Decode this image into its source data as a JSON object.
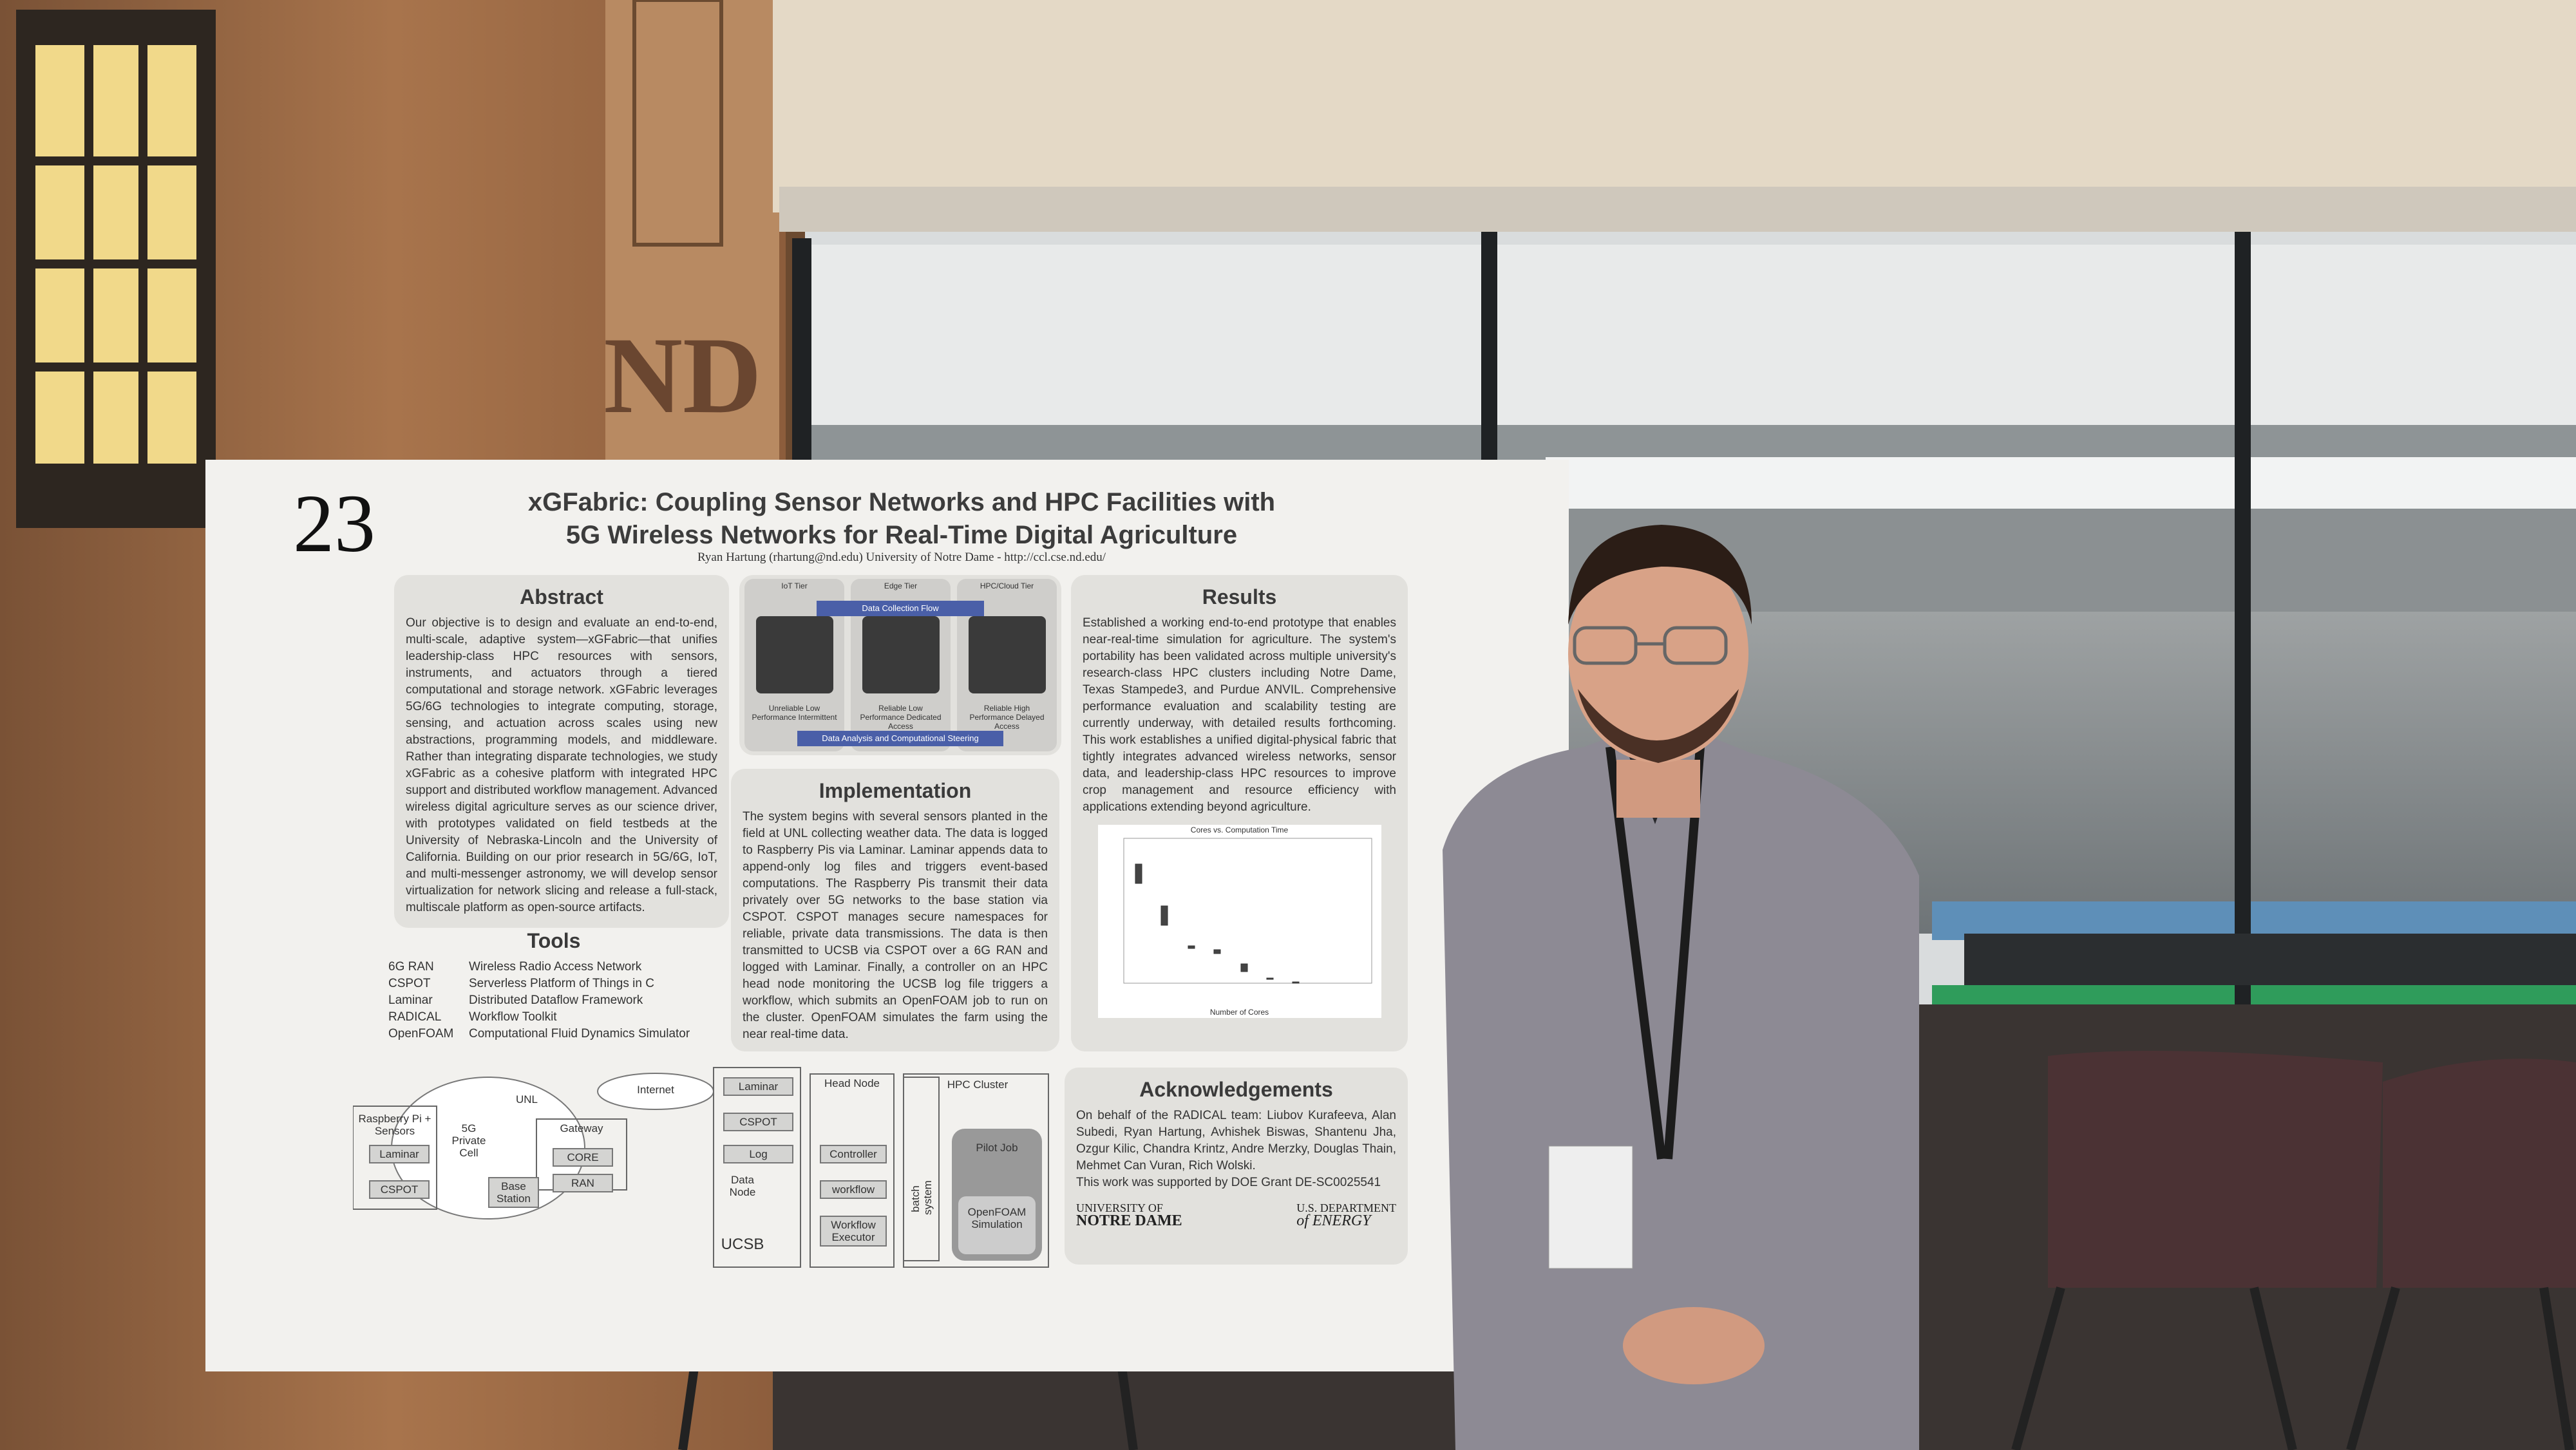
{
  "poster": {
    "number": "23",
    "title_lines": [
      "xGFabric: Coupling Sensor Networks and HPC Facilities with",
      "5G Wireless Networks for Real-Time Digital Agriculture"
    ],
    "author": "Ryan Hartung (rhartung@nd.edu) University of Notre Dame - http://ccl.cse.nd.edu/",
    "abstract": {
      "heading": "Abstract",
      "text": "Our objective is to design and evaluate an end-to-end, multi-scale, adaptive system—xGFabric—that unifies leadership-class HPC resources with sensors, instruments, and actuators through a tiered computational and storage network. xGFabric leverages 5G/6G technologies to integrate computing, storage, sensing, and actuation across scales using new abstractions, programming models, and middleware. Rather than integrating disparate technologies, we study xGFabric as a cohesive platform with integrated HPC support and distributed workflow management. Advanced wireless digital agriculture serves as our science driver, with prototypes validated on field testbeds at the University of Nebraska-Lincoln and the University of California. Building on our prior research in 5G/6G, IoT, and multi-messenger astronomy, we will develop sensor virtualization for network slicing and release a full-stack, multiscale platform as open-source artifacts."
    },
    "tools": {
      "heading": "Tools",
      "items": [
        {
          "name": "6G RAN",
          "desc": "Wireless Radio Access Network"
        },
        {
          "name": "CSPOT",
          "desc": "Serverless Platform of Things in C"
        },
        {
          "name": "Laminar",
          "desc": "Distributed Dataflow Framework"
        },
        {
          "name": "RADICAL",
          "desc": "Workflow Toolkit"
        },
        {
          "name": "OpenFOAM",
          "desc": "Computational Fluid Dynamics Simulator"
        }
      ]
    },
    "tiers": {
      "names": [
        "IoT Tier",
        "Edge Tier",
        "HPC/Cloud Tier"
      ],
      "descriptions": [
        "Unreliable Low Performance Intermittent",
        "Reliable Low Performance Dedicated Access",
        "Reliable High Performance Delayed Access"
      ],
      "top_flow": "Data Collection Flow",
      "bottom_flow": "Data Analysis and Computational Steering"
    },
    "implementation": {
      "heading": "Implementation",
      "text": "The system begins with several sensors planted in the field at UNL collecting weather data. The data is logged to Raspberry Pis via Laminar. Laminar appends data to append-only log files and triggers event-based computations. The Raspberry Pis transmit their data privately over 5G networks to the base station via CSPOT. CSPOT manages secure namespaces for reliable, private data transmissions. The data is then transmitted to UCSB via CSPOT over a 6G RAN and logged with Laminar. Finally, a controller on an HPC head node monitoring the UCSB log file triggers a workflow, which submits an OpenFOAM job to run on the cluster. OpenFOAM simulates the farm using the near real-time data."
    },
    "results": {
      "heading": "Results",
      "text": "Established a working end-to-end prototype that enables near-real-time simulation for agriculture. The system's portability has been validated across multiple university's research-class HPC clusters including Notre Dame, Texas Stampede3, and Purdue ANVIL. Comprehensive performance evaluation and scalability testing are currently underway, with detailed results forthcoming. This work establishes a unified digital-physical fabric that tightly integrates advanced wireless networks, sensor data, and leadership-class HPC resources to improve crop management and resource efficiency with applications extending beyond agriculture.",
      "chart_title": "Cores vs. Computation Time",
      "chart_xlabel": "Number of Cores"
    },
    "acknowledgements": {
      "heading": "Acknowledgements",
      "text": "On behalf of the RADICAL team: Liubov Kurafeeva, Alan Subedi, Ryan Hartung, Avhishek Biswas, Shantenu Jha, Ozgur Kilic, Chandra Krintz, Andre Merzky, Douglas Thain, Mehmet Can Vuran, Rich Wolski.",
      "grant": "This work was supported by DOE Grant DE-SC0025541",
      "logos": [
        [
          "UNIVERSITY OF",
          "NOTRE DAME"
        ],
        [
          "U.S. DEPARTMENT",
          "of ENERGY"
        ]
      ]
    },
    "diagram": {
      "labels": [
        "Raspberry Pi + Sensors",
        "Laminar",
        "CSPOT",
        "UNL",
        "5G Private Cell",
        "Base Station",
        "Gateway",
        "CORE",
        "RAN",
        "Internet",
        "Laminar",
        "CSPOT",
        "Log",
        "Data Node",
        "UCSB",
        "Head Node",
        "Controller",
        "workflow",
        "Workflow Executor",
        "batch system",
        "HPC Cluster",
        "Pilot Job",
        "OpenFOAM Simulation"
      ]
    }
  }
}
